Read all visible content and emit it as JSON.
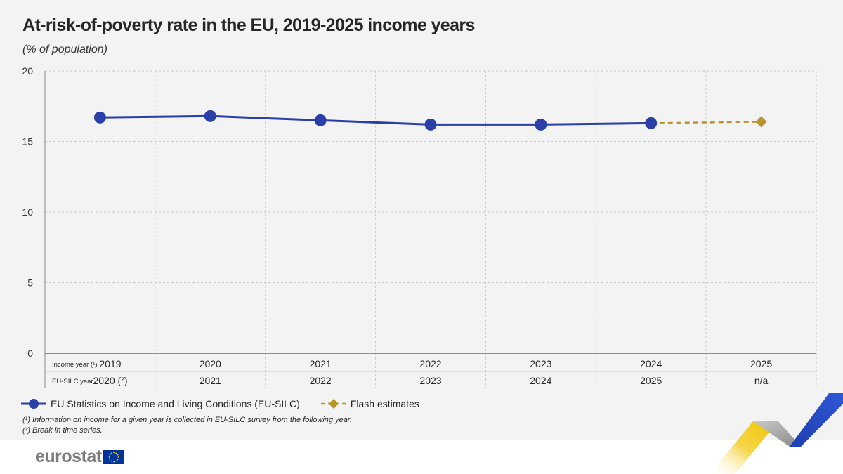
{
  "title": "At-risk-of-poverty rate in the EU, 2019-2025 income years",
  "subtitle": "(% of population)",
  "colors": {
    "silc": "#2a3fa8",
    "flash": "#b8962a",
    "grid": "#c8c8c8",
    "background": "#f3f3f3"
  },
  "chart_data": {
    "type": "line",
    "categories": [
      "2019",
      "2020",
      "2021",
      "2022",
      "2023",
      "2024",
      "2025"
    ],
    "y_ticks": [
      "0",
      "5",
      "10",
      "15",
      "20"
    ],
    "ylim": [
      0,
      20
    ],
    "grid": true,
    "legend_position": "bottom-left",
    "series": [
      {
        "name": "EU Statistics on Income and Living Conditions (EU-SILC)",
        "values": [
          16.7,
          16.8,
          16.5,
          16.2,
          16.2,
          16.3,
          null
        ],
        "style": "solid",
        "marker": "circle",
        "color": "#2a3fa8"
      },
      {
        "name": "Flash estimates",
        "values": [
          null,
          null,
          null,
          null,
          null,
          16.3,
          16.4
        ],
        "style": "dashed",
        "marker": "diamond",
        "color": "#b8962a"
      }
    ],
    "axis_rows": [
      {
        "label": "Income year (¹)",
        "values": [
          "2019",
          "2020",
          "2021",
          "2022",
          "2023",
          "2024",
          "2025"
        ]
      },
      {
        "label": "EU-SILC year",
        "values": [
          "2020 (²)",
          "2021",
          "2022",
          "2023",
          "2024",
          "2025",
          "n/a"
        ]
      }
    ]
  },
  "notes": [
    "(¹) Information on income for a given year is collected in EU-SILC survey from the following year.",
    "(²) Break in time series."
  ],
  "logo": {
    "text": "eurostat",
    "flag": "eu-flag-icon"
  }
}
